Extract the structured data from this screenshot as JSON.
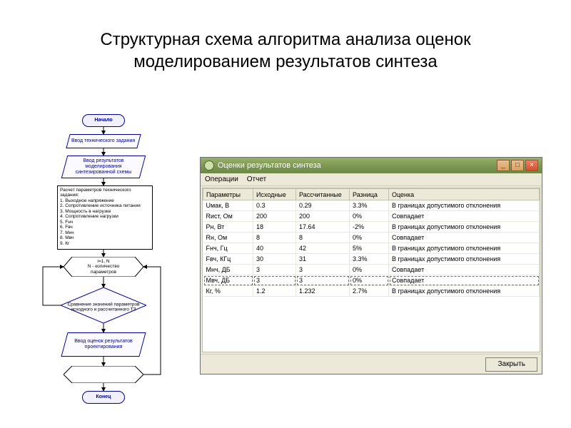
{
  "title": "Структурная схема алгоритма анализа оценок моделированием результатов синтеза",
  "flowchart": {
    "start": "Начало",
    "input_tz": "Ввод технического задания",
    "input_model": "Ввод результатов моделирования синтезированной схемы",
    "calc": "Расчет параметров технического задания:\n1. Выходное напряжение\n2. Сопротивление источника питания\n3. Мощность в нагрузке\n4. Сопротивление нагрузки\n5. Fнч\n6. Fвч\n7. Мнч\n8. Мвч\n9. Кг",
    "loop": "i=1, N\nN - количество параметров",
    "decision": "Сравнение значений параметров исходного и рассчитанного ТЗ",
    "output": "Ввод оценок результатов проектирования",
    "end": "Конец",
    "colors": {
      "node_border": "#000099",
      "node_fill": "#f8f8ff",
      "arrow": "#000000"
    }
  },
  "window": {
    "title": "Оценки результатов синтеза",
    "menu": {
      "operations": "Операции",
      "report": "Отчет"
    },
    "close_button": "Закрыть",
    "table": {
      "columns": [
        "Параметры",
        "Исходные",
        "Рассчитанные",
        "Разница",
        "Оценка"
      ],
      "col_widths": [
        "70px",
        "60px",
        "75px",
        "55px",
        "auto"
      ],
      "rows": [
        [
          "Uмак, В",
          "0.3",
          "0.29",
          "3.3%",
          "В границах допустимого отклонения"
        ],
        [
          "Rист, Ом",
          "200",
          "200",
          "0%",
          "Совпадает"
        ],
        [
          "Pн, Вт",
          "18",
          "17.64",
          "-2%",
          "В границах допустимого отклонения"
        ],
        [
          "Rн, Ом",
          "8",
          "8",
          "0%",
          "Совпадает"
        ],
        [
          "Fнч, Гц",
          "40",
          "42",
          "5%",
          "В границах допустимого отклонения"
        ],
        [
          "Fвч, КГц",
          "30",
          "31",
          "3.3%",
          "В границах допустимого отклонения"
        ],
        [
          "Мнч, ДБ",
          "3",
          "3",
          "0%",
          "Совпадает"
        ],
        [
          "Мвч, ДБ",
          "3",
          "3",
          "0%",
          "Совпадает"
        ],
        [
          "Кг, %",
          "1.2",
          "1.232",
          "2.7%",
          "В границах допустимого отклонения"
        ]
      ],
      "focused_row_index": 7
    },
    "colors": {
      "titlebar_bg": "#7a9450",
      "chrome_bg": "#ece9d8",
      "grid_line": "#e8e8e0",
      "header_border": "#c0c0b0"
    }
  }
}
